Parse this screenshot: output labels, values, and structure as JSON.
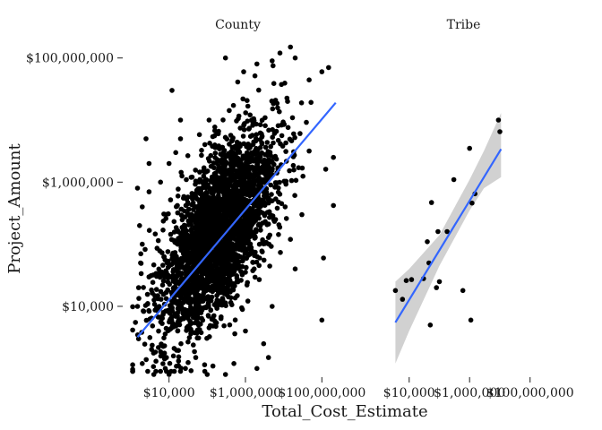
{
  "chart_data": {
    "type": "scatter",
    "x_scale": "log10",
    "y_scale": "log10",
    "xlabel": "Total_Cost_Estimate",
    "ylabel": "Project_Amount",
    "x_ticks": [
      {
        "value": 10000,
        "label": "$10,000"
      },
      {
        "value": 1000000,
        "label": "$1,000,000"
      },
      {
        "value": 100000000,
        "label": "$100,000,000"
      }
    ],
    "y_ticks": [
      {
        "value": 10000,
        "label": "$10,000"
      },
      {
        "value": 1000000,
        "label": "$1,000,000"
      },
      {
        "value": 100000000,
        "label": "$100,000,000"
      }
    ],
    "xlim": [
      1000,
      400000000
    ],
    "ylim": [
      800,
      180000000
    ],
    "grid": false,
    "panels": [
      {
        "name": "County",
        "fit": {
          "x_start": 1500,
          "x_end": 230000000,
          "y_start": 3200,
          "y_end": 19000000
        },
        "band": null,
        "cloud": {
          "count": 3000,
          "log_x_center": 5.3,
          "log_y_center": 5.2,
          "sd_log_x": 0.75,
          "sd_log_y": 0.8,
          "correlation": 0.62
        },
        "points": [
          [
            1500,
            800000
          ],
          [
            3000,
            2000000
          ],
          [
            2500,
            5000000
          ],
          [
            12000,
            30000000
          ],
          [
            20000,
            10000000
          ],
          [
            15000,
            3000000
          ],
          [
            300000,
            100000000
          ],
          [
            900000,
            60000000
          ],
          [
            2000000,
            80000000
          ],
          [
            5000000,
            90000000
          ],
          [
            8000000,
            120000000
          ],
          [
            15000000,
            150000000
          ],
          [
            20000000,
            100000000
          ],
          [
            100000000,
            60000000
          ],
          [
            150000000,
            70000000
          ],
          [
            200000000,
            2500000
          ],
          [
            200000000,
            420000
          ],
          [
            110000000,
            60000
          ],
          [
            100000000,
            6000
          ],
          [
            30000000,
            300000
          ],
          [
            15000000,
            120000
          ],
          [
            20000000,
            40000
          ],
          [
            5000000,
            10000
          ],
          [
            4000000,
            1500
          ],
          [
            3000000,
            2500
          ],
          [
            2000000,
            1000
          ],
          [
            1000000,
            4000
          ],
          [
            500000,
            1200
          ],
          [
            300000,
            800
          ],
          [
            100000,
            800
          ],
          [
            50000,
            1500
          ],
          [
            20000,
            900
          ],
          [
            10000,
            800
          ],
          [
            8000,
            1000
          ],
          [
            6000,
            900
          ],
          [
            4000,
            800
          ],
          [
            2000,
            1200
          ],
          [
            1600,
            3000
          ],
          [
            1500,
            10000
          ],
          [
            1600,
            20000
          ],
          [
            1800,
            50000
          ],
          [
            2000,
            100000
          ],
          [
            1700,
            200000
          ],
          [
            2000,
            400000
          ],
          [
            3000,
            700000
          ],
          [
            6000,
            1000000
          ],
          [
            10000,
            2000000
          ],
          [
            20000,
            5000000
          ]
        ]
      },
      {
        "name": "Tribe",
        "fit": {
          "x_start": 3500,
          "x_end": 11000000,
          "y_start": 5500,
          "y_end": 3400000
        },
        "band": {
          "x": [
            3500,
            10000,
            100000,
            1000000,
            3000000,
            11000000
          ],
          "lower": [
            1200,
            4000,
            45000,
            350000,
            800000,
            1200000
          ],
          "upper": [
            25000,
            40000,
            140000,
            1100000,
            3200000,
            13000000
          ]
        },
        "points": [
          [
            3500,
            18000
          ],
          [
            6000,
            13000
          ],
          [
            8000,
            26000
          ],
          [
            12000,
            27000
          ],
          [
            30000,
            28000
          ],
          [
            45000,
            50000
          ],
          [
            40000,
            110000
          ],
          [
            55000,
            470000
          ],
          [
            90000,
            160000
          ],
          [
            80000,
            20000
          ],
          [
            50000,
            5000
          ],
          [
            100000,
            25000
          ],
          [
            180000,
            160000
          ],
          [
            300000,
            1100000
          ],
          [
            600000,
            18000
          ],
          [
            1000000,
            3500000
          ],
          [
            1200000,
            460000
          ],
          [
            1500000,
            650000
          ],
          [
            1100000,
            6000
          ],
          [
            10000000,
            6500000
          ],
          [
            9000000,
            10000000
          ]
        ]
      }
    ]
  }
}
